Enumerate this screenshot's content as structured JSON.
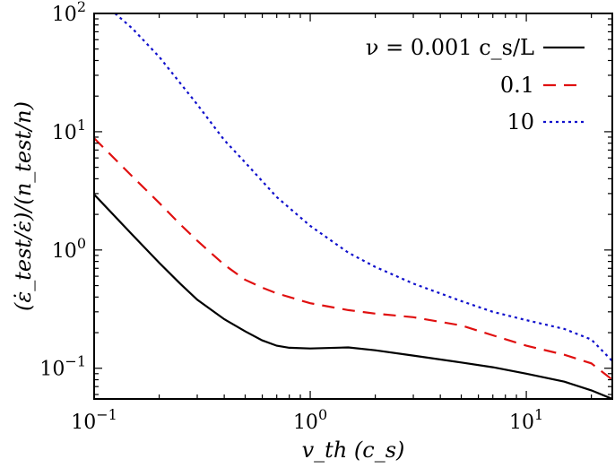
{
  "chart_data": {
    "type": "line",
    "title": "",
    "xlabel": "v_th (c_s)",
    "ylabel": "(ε̇_test/ε̇)/(n_test/n)",
    "xscale": "log",
    "yscale": "log",
    "xlim": [
      0.1,
      25
    ],
    "ylim": [
      0.055,
      100
    ],
    "x_ticks": [
      {
        "value": 0.1,
        "base": "10",
        "exp": "−1"
      },
      {
        "value": 1,
        "base": "10",
        "exp": "0"
      },
      {
        "value": 10,
        "base": "10",
        "exp": "1"
      }
    ],
    "y_ticks": [
      {
        "value": 0.1,
        "base": "10",
        "exp": "−1"
      },
      {
        "value": 1,
        "base": "10",
        "exp": "0"
      },
      {
        "value": 10,
        "base": "10",
        "exp": "1"
      },
      {
        "value": 100,
        "base": "10",
        "exp": "2"
      }
    ],
    "legend_position": "top-right",
    "series": [
      {
        "name": "ν = 0.001 c_s/L",
        "color": "#000000",
        "dash": "solid",
        "x": [
          0.1,
          0.15,
          0.2,
          0.25,
          0.3,
          0.4,
          0.5,
          0.6,
          0.7,
          0.8,
          1.0,
          1.5,
          2,
          3,
          5,
          7,
          10,
          15,
          20,
          25
        ],
        "y": [
          2.95,
          1.35,
          0.78,
          0.52,
          0.38,
          0.26,
          0.205,
          0.172,
          0.155,
          0.149,
          0.147,
          0.15,
          0.142,
          0.128,
          0.112,
          0.102,
          0.09,
          0.077,
          0.065,
          0.055
        ]
      },
      {
        "name": "0.1",
        "color": "#e01010",
        "dash": "dashed",
        "x": [
          0.1,
          0.15,
          0.2,
          0.25,
          0.3,
          0.4,
          0.5,
          0.6,
          0.7,
          0.8,
          1.0,
          1.5,
          2,
          3,
          5,
          7,
          10,
          15,
          20,
          25
        ],
        "y": [
          8.8,
          4.2,
          2.5,
          1.65,
          1.2,
          0.75,
          0.56,
          0.48,
          0.43,
          0.4,
          0.355,
          0.31,
          0.29,
          0.27,
          0.23,
          0.19,
          0.155,
          0.13,
          0.11,
          0.08
        ]
      },
      {
        "name": "10",
        "color": "#1010cc",
        "dash": "dotted",
        "x": [
          0.125,
          0.15,
          0.2,
          0.3,
          0.4,
          0.5,
          0.7,
          1.0,
          1.5,
          2,
          3,
          5,
          7,
          10,
          15,
          20,
          25
        ],
        "y": [
          100,
          75,
          43,
          17,
          8.5,
          5.5,
          2.8,
          1.6,
          0.95,
          0.72,
          0.52,
          0.37,
          0.3,
          0.255,
          0.215,
          0.175,
          0.115
        ]
      }
    ]
  }
}
